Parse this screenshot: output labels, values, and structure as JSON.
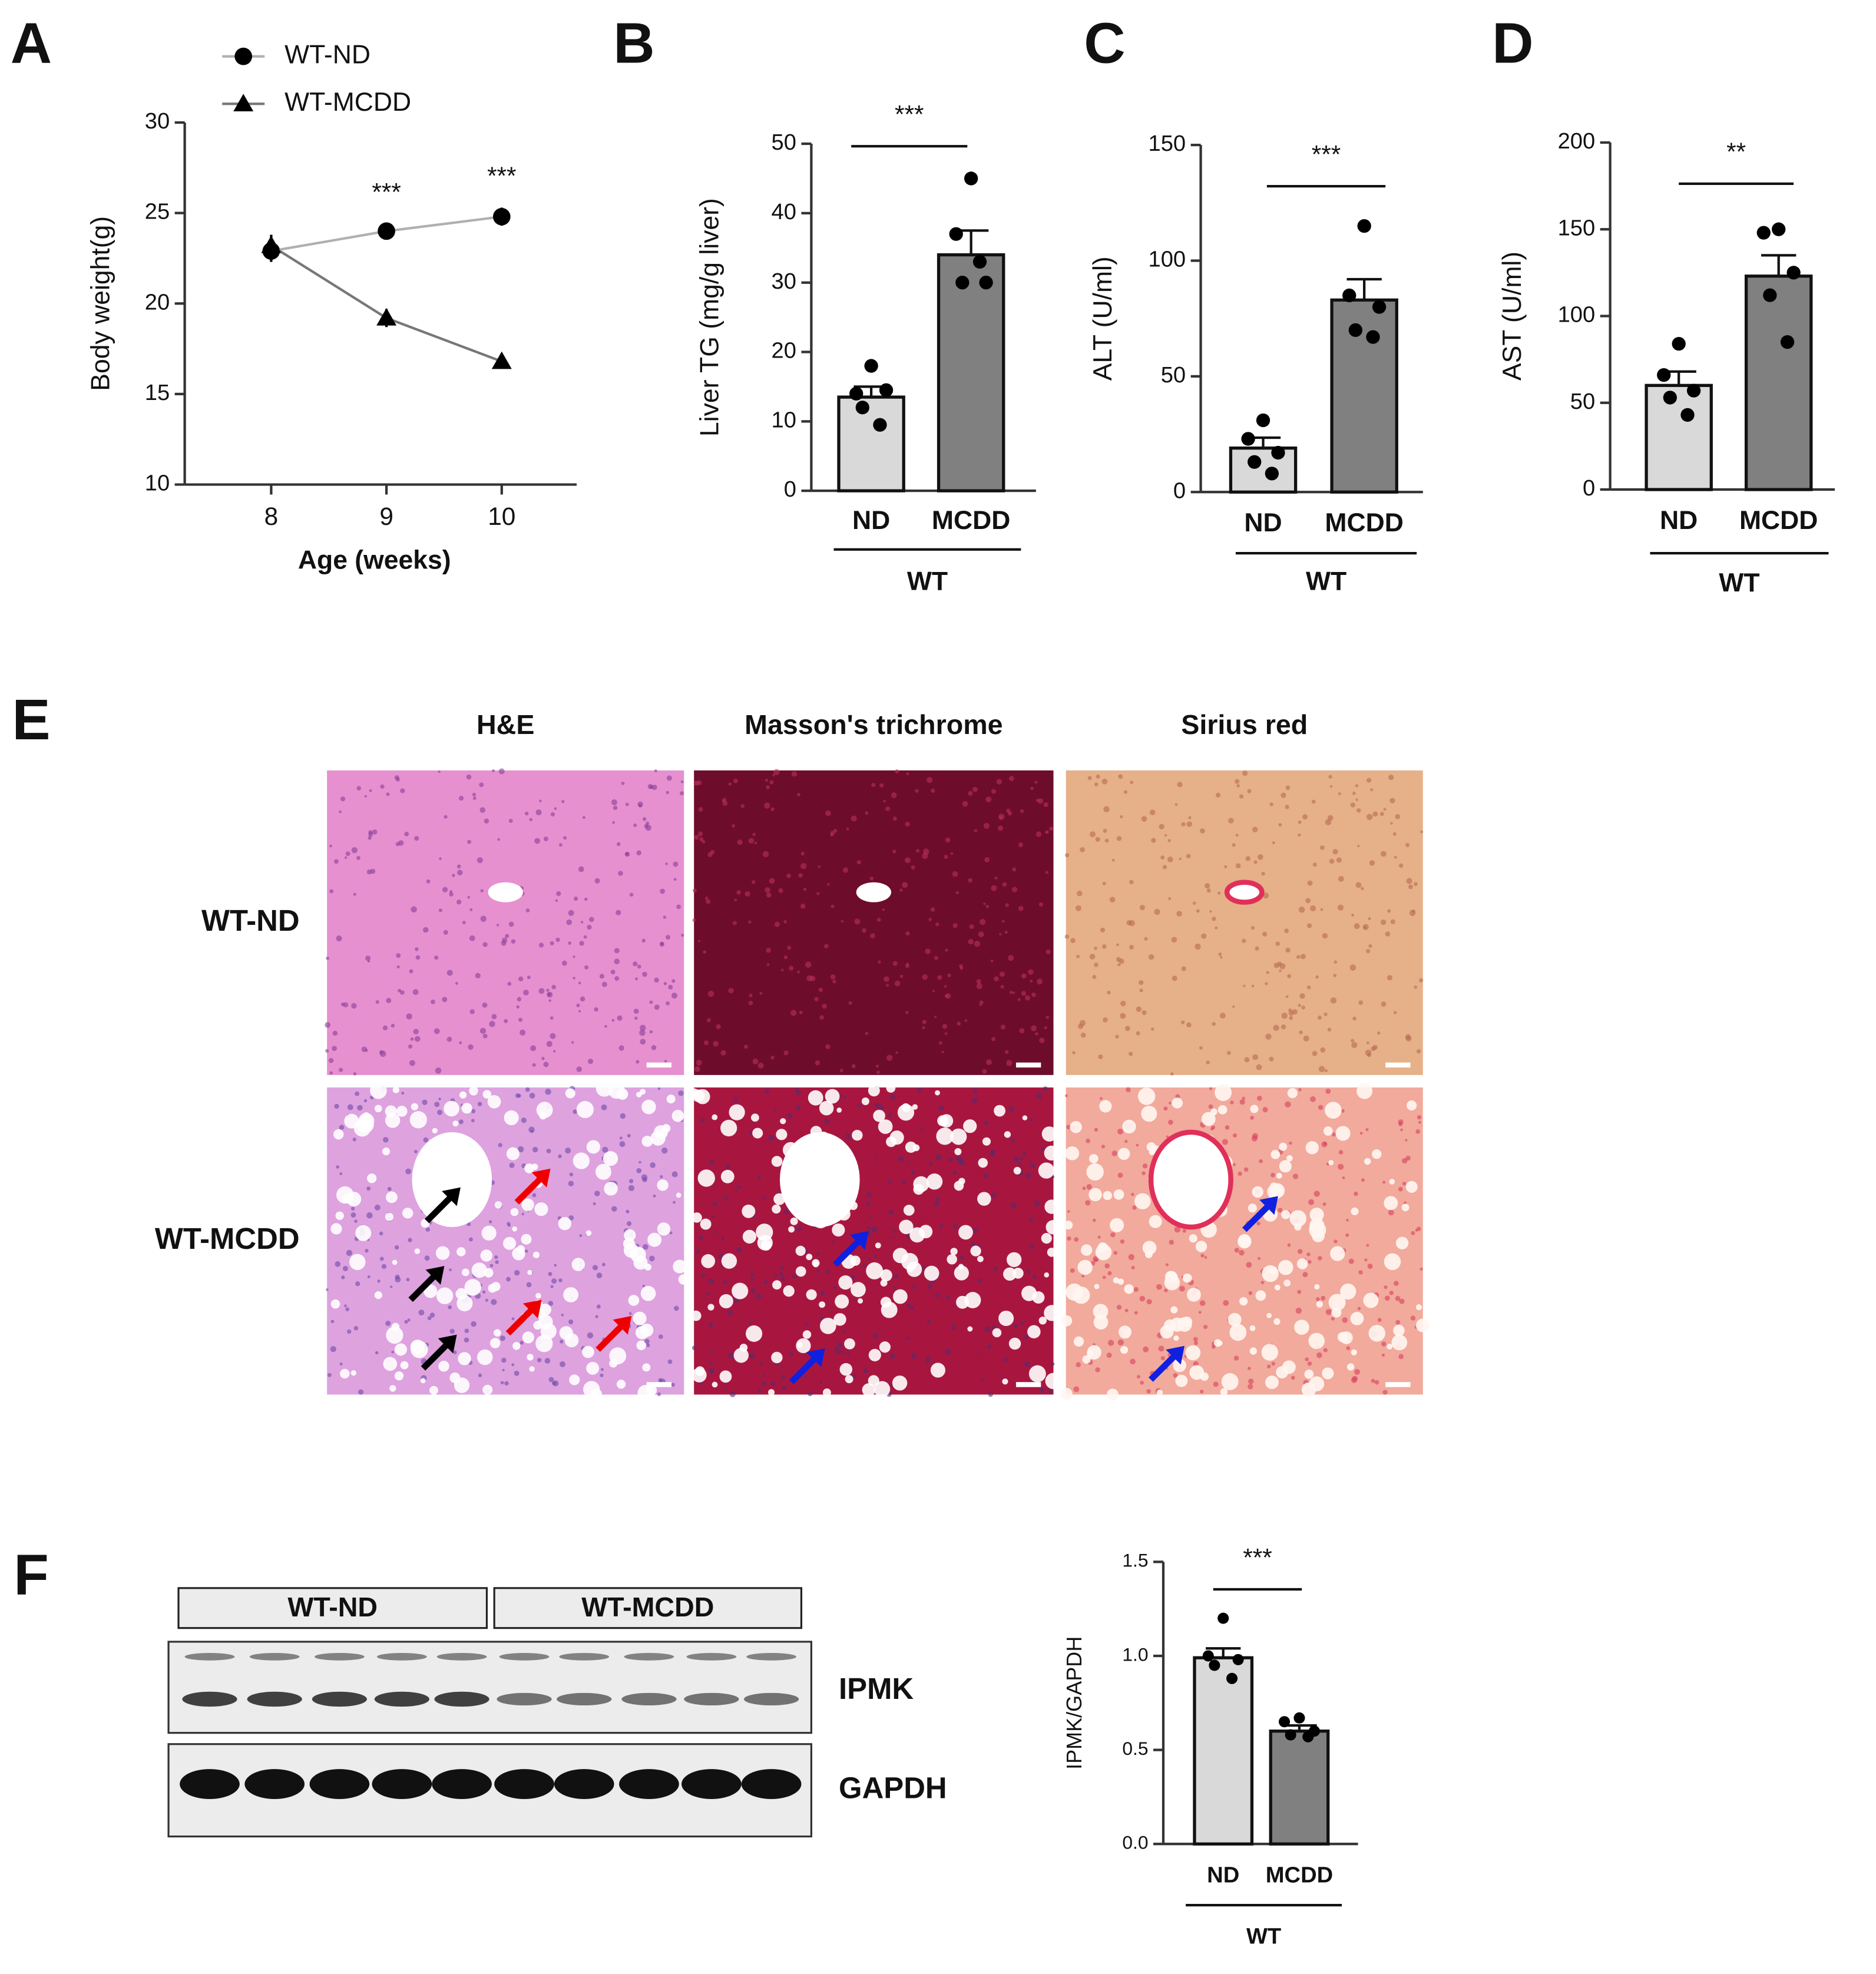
{
  "panel_labels": [
    "A",
    "B",
    "C",
    "D",
    "E",
    "F"
  ],
  "chart_data": [
    {
      "type": "line",
      "x_label": "Age (weeks)",
      "y_label": "Body weight(g)",
      "x": [
        8,
        9,
        10
      ],
      "xlim": [
        7.25,
        10.65
      ],
      "xticks": [
        8,
        9,
        10
      ],
      "ylim": [
        10,
        30
      ],
      "yticks": [
        10,
        15,
        20,
        25,
        30
      ],
      "legend": "top",
      "series": [
        {
          "name": "WT-ND",
          "marker": "circle",
          "color": "#000000",
          "line_color": "#b0b0b0",
          "values": [
            22.9,
            24.0,
            24.8
          ],
          "errors": [
            0.6,
            0.4,
            0.5
          ]
        },
        {
          "name": "WT-MCDD",
          "marker": "triangle",
          "color": "#000000",
          "line_color": "#777777",
          "values": [
            23.2,
            19.2,
            16.8
          ],
          "errors": [
            0.6,
            0.5,
            0.4
          ]
        }
      ],
      "annotations": [
        {
          "x": 9,
          "text": "***"
        },
        {
          "x": 10,
          "text": "***"
        }
      ]
    },
    {
      "type": "bar",
      "y_label": "Liver TG (mg/g liver)",
      "categories": [
        "ND",
        "MCDD"
      ],
      "group_label": "WT",
      "values": [
        13.5,
        34.0
      ],
      "errors": [
        1.5,
        3.5
      ],
      "colors": [
        "#d9d9d9",
        "#808080"
      ],
      "points": [
        [
          18,
          14,
          14.5,
          12,
          9.5
        ],
        [
          45,
          37,
          30,
          30,
          33
        ]
      ],
      "ylim": [
        0,
        50
      ],
      "yticks": [
        0,
        10,
        20,
        30,
        40,
        50
      ],
      "significance": "***"
    },
    {
      "type": "bar",
      "y_label": "ALT (U/ml)",
      "categories": [
        "ND",
        "MCDD"
      ],
      "group_label": "WT",
      "values": [
        19,
        83
      ],
      "errors": [
        4.5,
        9
      ],
      "colors": [
        "#d9d9d9",
        "#808080"
      ],
      "points": [
        [
          31,
          23,
          17,
          13,
          8
        ],
        [
          115,
          85,
          80,
          70,
          67
        ]
      ],
      "ylim": [
        0,
        150
      ],
      "yticks": [
        0,
        50,
        100,
        150
      ],
      "significance": "***"
    },
    {
      "type": "bar",
      "y_label": "AST (U/ml)",
      "categories": [
        "ND",
        "MCDD"
      ],
      "group_label": "WT",
      "values": [
        60,
        123
      ],
      "errors": [
        8,
        12
      ],
      "colors": [
        "#d9d9d9",
        "#808080"
      ],
      "points": [
        [
          84,
          66,
          57,
          53,
          43
        ],
        [
          150,
          148,
          125,
          112,
          85
        ]
      ],
      "ylim": [
        0,
        200
      ],
      "yticks": [
        0,
        50,
        100,
        150,
        200
      ],
      "significance": "**"
    },
    {
      "type": "bar",
      "y_label": "IPMK/GAPDH",
      "categories": [
        "ND",
        "MCDD"
      ],
      "group_label": "WT",
      "values": [
        0.99,
        0.6
      ],
      "errors": [
        0.05,
        0.03
      ],
      "colors": [
        "#d9d9d9",
        "#808080"
      ],
      "points": [
        [
          1.2,
          1.0,
          0.98,
          0.95,
          0.88
        ],
        [
          0.67,
          0.65,
          0.6,
          0.58,
          0.57
        ]
      ],
      "ylim": [
        0,
        1.5
      ],
      "yticks": [
        {
          "value": 0,
          "label": "0.0"
        },
        {
          "value": 0.5,
          "label": "0.5"
        },
        {
          "value": 1,
          "label": "1.0"
        },
        {
          "value": 1.5,
          "label": "1.5"
        }
      ],
      "significance": "***"
    }
  ],
  "histology": {
    "columns": [
      "H&E",
      "Masson's trichrome",
      "Sirius red"
    ],
    "rows": [
      "WT-ND",
      "WT-MCDD"
    ]
  },
  "blot": {
    "groups": [
      "WT-ND",
      "WT-MCDD"
    ],
    "bands": [
      "IPMK",
      "GAPDH"
    ]
  }
}
